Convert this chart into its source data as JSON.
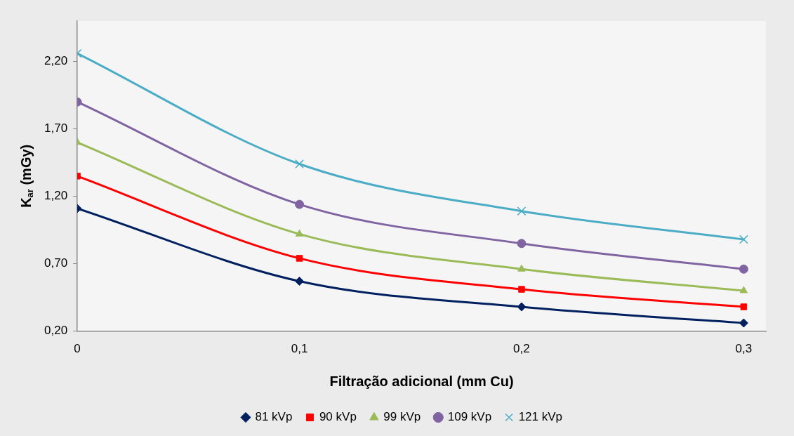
{
  "chart_data": {
    "type": "line",
    "xlabel": "Filtração adicional (mm Cu)",
    "ylabel": "K$_{ar}$ (mGy)",
    "x": [
      0,
      0.1,
      0.2,
      0.3
    ],
    "xlim": [
      0,
      0.31
    ],
    "xticks": [
      {
        "value": 0,
        "label": "0"
      },
      {
        "value": 0.1,
        "label": "0,1"
      },
      {
        "value": 0.2,
        "label": "0,2"
      },
      {
        "value": 0.3,
        "label": "0,3"
      }
    ],
    "ylim": [
      0.2,
      2.5
    ],
    "yticks": [
      {
        "value": 0.2,
        "label": "0,20"
      },
      {
        "value": 0.7,
        "label": "0,70"
      },
      {
        "value": 1.2,
        "label": "1,20"
      },
      {
        "value": 1.7,
        "label": "1,70"
      },
      {
        "value": 2.2,
        "label": "2,20"
      }
    ],
    "grid": false,
    "legend": "bottom",
    "line_style": "solid",
    "series": [
      {
        "name": "81 kVp",
        "color": "#002060",
        "marker": "diamond",
        "values": [
          1.11,
          0.57,
          0.38,
          0.26
        ]
      },
      {
        "name": "90 kVp",
        "color": "#ff0000",
        "marker": "square",
        "values": [
          1.35,
          0.74,
          0.51,
          0.38
        ]
      },
      {
        "name": "99 kVp",
        "color": "#9bbb59",
        "marker": "triangle",
        "values": [
          1.6,
          0.92,
          0.66,
          0.5
        ]
      },
      {
        "name": "109 kVp",
        "color": "#8064a2",
        "marker": "circle",
        "values": [
          1.9,
          1.14,
          0.85,
          0.66
        ]
      },
      {
        "name": "121 kVp",
        "color": "#4bacc6",
        "marker": "cross",
        "values": [
          2.26,
          1.44,
          1.09,
          0.88
        ]
      }
    ]
  }
}
